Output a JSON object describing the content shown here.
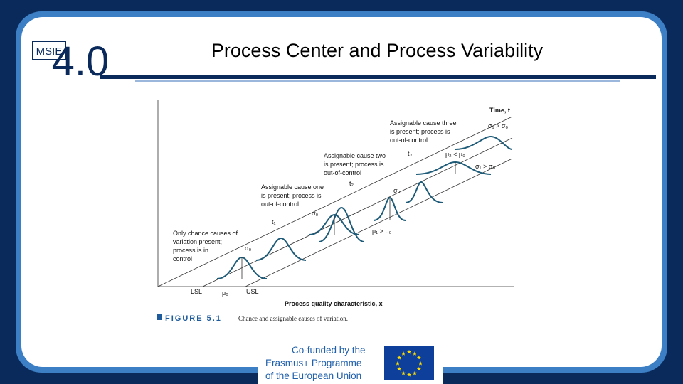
{
  "header": {
    "title": "Process Center and Process Variability",
    "logo": {
      "letters": "MSIE",
      "number": "4.0"
    }
  },
  "figure": {
    "time_axis": "Time, t",
    "x_axis": "Process quality characteristic, x",
    "annotations": [
      {
        "lines": [
          "Assignable cause three",
          "is present; process is",
          "out-of-control"
        ]
      },
      {
        "lines": [
          "Assignable cause two",
          "is present; process is",
          "out-of-control"
        ]
      },
      {
        "lines": [
          "Assignable cause one",
          "is present; process is",
          "out-of-control"
        ]
      },
      {
        "lines": [
          "Only chance causes of",
          "variation present;",
          "process is in",
          "control"
        ]
      }
    ],
    "symbols": [
      "σ₁ > σ₀",
      "t₃",
      "μ₂ < μ₀",
      "σ₁ > σ₀",
      "t₂",
      "σ₀",
      "σ₀",
      "t₁",
      "μ₁ > μ₀",
      "σ₀",
      "LSL",
      "μ₀",
      "USL"
    ],
    "caption": {
      "number": "FIGURE 5.1",
      "text": "Chance and assignable causes of variation."
    }
  },
  "footer": {
    "lines": [
      "Co-funded by the",
      "Erasmus+ Programme",
      "of the European Union"
    ]
  }
}
